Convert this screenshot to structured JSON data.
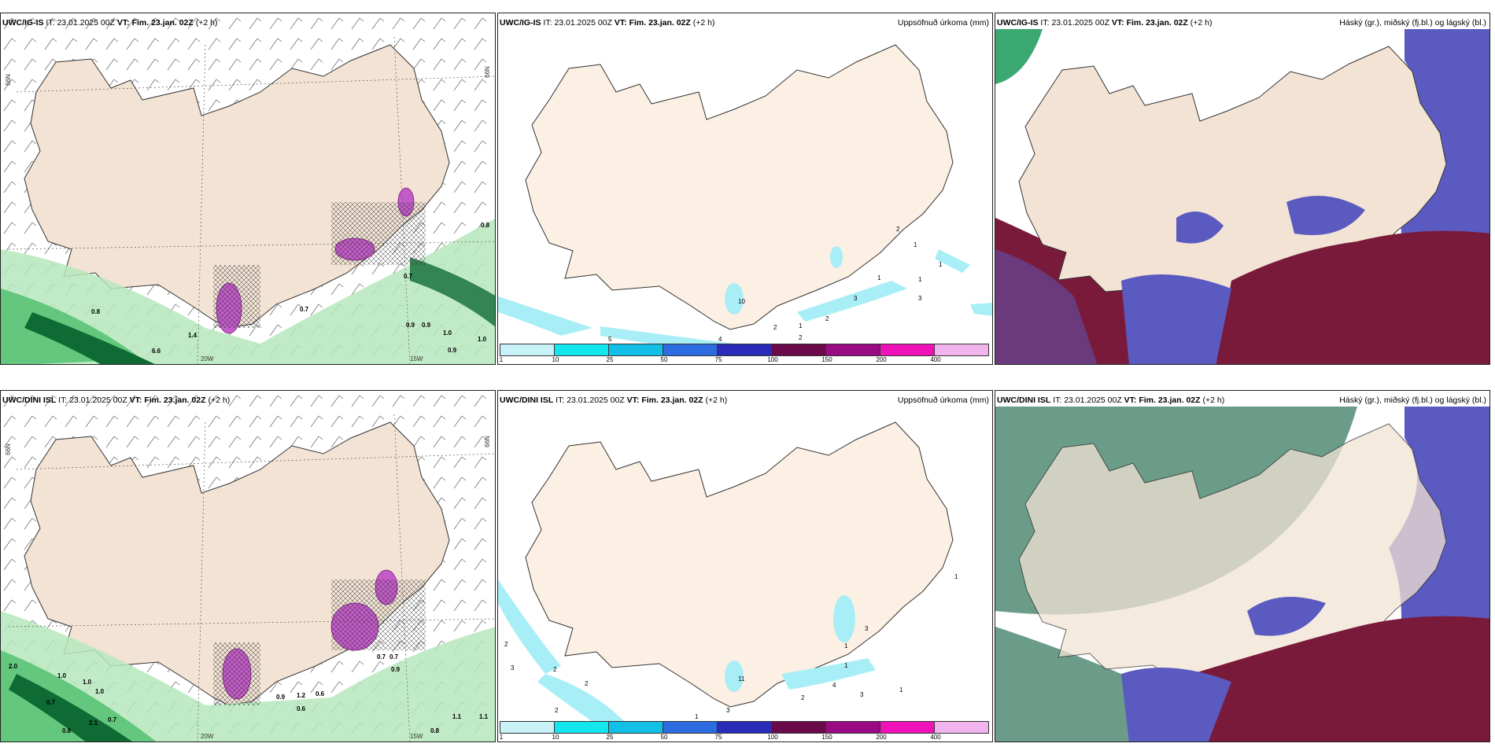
{
  "rows": [
    {
      "model": "UWC/IG-IS",
      "it_label": "IT:",
      "it_value": "23.01.2025 00Z",
      "vt_label": "VT:",
      "vt_value": "Fim. 23.jan. 02Z",
      "lead": "(+2 h)",
      "wind_axis": {
        "lat_left": "66N",
        "lat_right": "66N",
        "lon_a": "20W",
        "lon_b": "15W"
      },
      "precip_title": "Uppsöfnuð úrkoma (mm)",
      "cloud_title": "Háský (gr.), miðský (fj.bl.) og lágský (bl.)",
      "wind_values": [
        "0.8",
        "0.7",
        "0.7",
        "0.9",
        "0.9",
        "1.0",
        "1.0",
        "0.9",
        "6.6",
        "0.8",
        "1.4"
      ],
      "precip_values": [
        "2",
        "1",
        "1",
        "1",
        "1",
        "3",
        "3",
        "2",
        "2",
        "1",
        "2",
        "10",
        "5",
        "4"
      ]
    },
    {
      "model": "UWC/DINI ISL",
      "it_label": "IT:",
      "it_value": "23.01.2025 00Z",
      "vt_label": "VT:",
      "vt_value": "Fim. 23.jan. 02Z",
      "lead": "(+2 h)",
      "wind_axis": {
        "lat_left": "66N",
        "lat_right": "66N",
        "lon_a": "20W",
        "lon_b": "15W"
      },
      "precip_title": "Uppsöfnuð úrkoma (mm)",
      "cloud_title": "Háský (gr.), miðský (fj.bl.) og lágský (bl.)",
      "wind_values": [
        "2.0",
        "1.0",
        "1.0",
        "1.0",
        "0.7",
        "2.1",
        "0.7",
        "0.8",
        "0.9",
        "1.2",
        "0.6",
        "0.6",
        "0.7",
        "0.7",
        "0.9",
        "0.8",
        "1.1",
        "1.1"
      ],
      "precip_values": [
        "2",
        "3",
        "2",
        "2",
        "2",
        "3",
        "1",
        "1",
        "2",
        "4",
        "3",
        "1",
        "1",
        "3",
        "1",
        "11"
      ]
    }
  ],
  "colorbar": {
    "labels": [
      "1",
      "10",
      "25",
      "50",
      "75",
      "100",
      "150",
      "200",
      "400"
    ],
    "colors": [
      "#c8f2f8",
      "#14e6ee",
      "#12bfe6",
      "#2d6be0",
      "#2a2bb8",
      "#6a0a4a",
      "#9a0a82",
      "#f012b8",
      "#f2b4ec"
    ]
  },
  "colors": {
    "land": "#f2e3d4",
    "land_light": "#fcefe3",
    "precip_light": "#a8eef6",
    "green_light": "#b6e8bc",
    "green_mid": "#4bbf6b",
    "green_dark": "#0f6b34",
    "cloud_high": "#6b9c8a",
    "cloud_mid": "#5a5ac0",
    "cloud_low": "#7a1a3a"
  }
}
